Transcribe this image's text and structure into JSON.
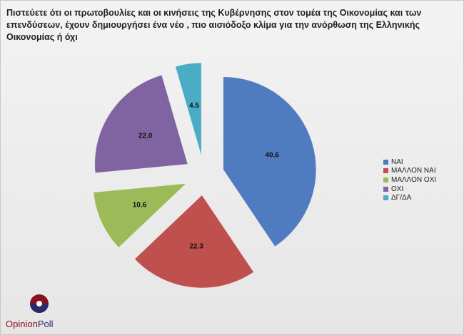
{
  "title": "Πιστεύετε ότι οι πρωτοβουλίες και οι κινήσεις της Κυβέρνησης στον τομέα της Οικονομίας και των επενδύσεων, έχουν δημιουργήσει ένα νέο , πιο αισιόδοξο κλίμα για την ανόρθωση της Ελληνικής Οικονομίας ή όχι",
  "chart_data": {
    "type": "pie",
    "title": "Πιστεύετε ότι οι πρωτοβουλίες και οι κινήσεις της Κυβέρνησης στον τομέα της Οικονομίας και των επενδύσεων, έχουν δημιουργήσει ένα νέο , πιο αισιόδοξο κλίμα για την ανόρθωση της Ελληνικής Οικονομίας ή όχι",
    "categories": [
      "ΝΑΙ",
      "ΜΑΛΛΟΝ ΝΑΙ",
      "ΜΑΛΛΟΝ ΟΧΙ",
      "ΟΧΙ",
      "ΔΓ/ΔΑ"
    ],
    "values": [
      40.6,
      22.3,
      10.6,
      22.0,
      4.5
    ],
    "labels": [
      "40.6",
      "22.3",
      "10.6",
      "22.0",
      "4.5"
    ],
    "colors": [
      "#4f7cc0",
      "#c0504d",
      "#9bbb59",
      "#8064a2",
      "#4bacc6"
    ],
    "exploded": true,
    "legend_position": "right"
  },
  "logo": {
    "text_a": "Opinion",
    "text_b": "Poll"
  }
}
